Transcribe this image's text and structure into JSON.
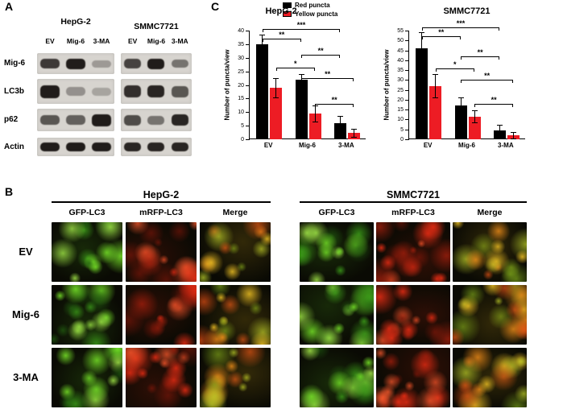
{
  "figure": {
    "panel_a_label": "A",
    "panel_b_label": "B",
    "panel_c_label": "C"
  },
  "panel_a": {
    "groups": [
      {
        "name": "HepG-2",
        "lanes": [
          "EV",
          "Mig-6",
          "3-MA"
        ]
      },
      {
        "name": "SMMC7721",
        "lanes": [
          "EV",
          "Mig-6",
          "3-MA"
        ]
      }
    ],
    "blots": [
      {
        "protein": "Mig-6",
        "band_intensities": {
          "HepG-2": [
            0.8,
            0.95,
            0.3
          ],
          "SMMC7721": [
            0.75,
            0.95,
            0.5
          ]
        }
      },
      {
        "protein": "LC3b",
        "band_intensities": {
          "HepG-2": [
            0.95,
            0.35,
            0.25
          ],
          "SMMC7721": [
            0.85,
            0.9,
            0.65
          ]
        }
      },
      {
        "protein": "p62",
        "band_intensities": {
          "HepG-2": [
            0.65,
            0.6,
            0.95
          ],
          "SMMC7721": [
            0.7,
            0.5,
            0.9
          ]
        }
      },
      {
        "protein": "Actin",
        "band_intensities": {
          "HepG-2": [
            0.95,
            0.95,
            0.95
          ],
          "SMMC7721": [
            0.9,
            0.9,
            0.9
          ]
        }
      }
    ]
  },
  "panel_b": {
    "groups": [
      {
        "name": "HepG-2",
        "columns": [
          "GFP-LC3",
          "mRFP-LC3",
          "Merge"
        ]
      },
      {
        "name": "SMMC7721",
        "columns": [
          "GFP-LC3",
          "mRFP-LC3",
          "Merge"
        ]
      }
    ],
    "rows": [
      "EV",
      "Mig-6",
      "3-MA"
    ]
  },
  "panel_c": {
    "legend": [
      {
        "label": "Red puncta",
        "color": "#000000"
      },
      {
        "label": "Yellow puncta",
        "color": "#ed1c24"
      }
    ]
  },
  "chart_data": [
    {
      "type": "bar",
      "title": "HepG-2",
      "ylabel": "Number of puncta/view",
      "xlabel": "",
      "categories": [
        "EV",
        "Mig-6",
        "3-MA"
      ],
      "series": [
        {
          "name": "Red puncta",
          "color": "#000000",
          "values": [
            35,
            22,
            6
          ],
          "errors": [
            3.5,
            2,
            2.5
          ]
        },
        {
          "name": "Yellow puncta",
          "color": "#ed1c24",
          "values": [
            19,
            9.5,
            2.5
          ],
          "errors": [
            3.5,
            3,
            1.5
          ]
        }
      ],
      "ylim": [
        0,
        40
      ],
      "ytick_step": 5,
      "grid": false,
      "legend_position": "top-right",
      "significance": [
        {
          "x1": 0,
          "x2": 2,
          "y": 37,
          "label": "**"
        },
        {
          "x1": 0,
          "x2": 4,
          "y": 40.5,
          "label": "***"
        },
        {
          "x1": 1,
          "x2": 3,
          "y": 26.5,
          "label": "*"
        },
        {
          "x1": 2,
          "x2": 4,
          "y": 31,
          "label": "**"
        },
        {
          "x1": 2,
          "x2": 5,
          "y": 22.5,
          "label": "**"
        },
        {
          "x1": 3,
          "x2": 5,
          "y": 13,
          "label": "**"
        }
      ]
    },
    {
      "type": "bar",
      "title": "SMMC7721",
      "ylabel": "Number of puncta/view",
      "xlabel": "",
      "categories": [
        "EV",
        "Mig-6",
        "3-MA"
      ],
      "series": [
        {
          "name": "Red puncta",
          "color": "#000000",
          "values": [
            46,
            17,
            4.5
          ],
          "errors": [
            8,
            4,
            3
          ]
        },
        {
          "name": "Yellow puncta",
          "color": "#ed1c24",
          "values": [
            27,
            11.5,
            2
          ],
          "errors": [
            6,
            3,
            1.5
          ]
        }
      ],
      "ylim": [
        0,
        55
      ],
      "ytick_step": 5,
      "grid": false,
      "legend_position": "top-right",
      "significance": [
        {
          "x1": 0,
          "x2": 2,
          "y": 52,
          "label": "**"
        },
        {
          "x1": 0,
          "x2": 4,
          "y": 56.5,
          "label": "***"
        },
        {
          "x1": 1,
          "x2": 3,
          "y": 36,
          "label": "*"
        },
        {
          "x1": 2,
          "x2": 4,
          "y": 42,
          "label": "**"
        },
        {
          "x1": 2,
          "x2": 5,
          "y": 30,
          "label": "**"
        },
        {
          "x1": 3,
          "x2": 5,
          "y": 18,
          "label": "**"
        }
      ]
    }
  ]
}
